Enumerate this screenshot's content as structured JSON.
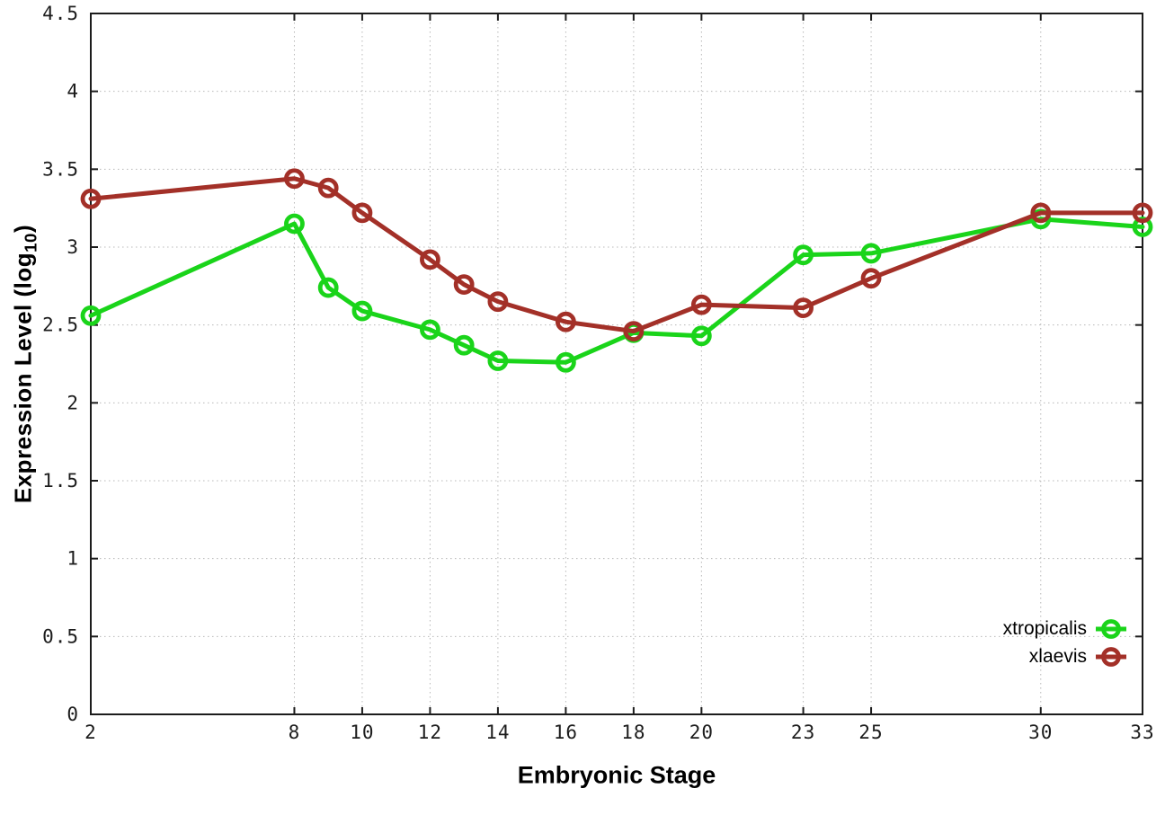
{
  "chart_data": {
    "type": "line",
    "title": "",
    "xlabel": "Embryonic Stage",
    "ylabel": {
      "prefix": "Expression Level (log",
      "subscript": "10",
      "suffix": ")"
    },
    "x": [
      2,
      8,
      9,
      10,
      12,
      13,
      14,
      16,
      18,
      20,
      23,
      25,
      30,
      33
    ],
    "series": [
      {
        "name": "xtropicalis",
        "color": "#1ad41a",
        "values": [
          2.56,
          3.15,
          2.74,
          2.59,
          2.47,
          2.37,
          2.27,
          2.26,
          2.45,
          2.43,
          2.95,
          2.96,
          3.18,
          3.13
        ]
      },
      {
        "name": "xlaevis",
        "color": "#a33028",
        "values": [
          3.31,
          3.44,
          3.38,
          3.22,
          2.92,
          2.76,
          2.65,
          2.52,
          2.46,
          2.63,
          2.61,
          2.8,
          3.22,
          3.22
        ]
      }
    ],
    "xlim": [
      2,
      33
    ],
    "ylim": [
      0,
      4.5
    ],
    "x_ticks": {
      "values": [
        2,
        8,
        10,
        12,
        14,
        16,
        18,
        20,
        23,
        25,
        30,
        33
      ],
      "labels": [
        "2",
        "8",
        "10",
        "12",
        "14",
        "16",
        "18",
        "20",
        "23",
        "25",
        "30",
        "33"
      ]
    },
    "y_ticks": {
      "values": [
        0,
        0.5,
        1,
        1.5,
        2,
        2.5,
        3,
        3.5,
        4,
        4.5
      ],
      "labels": [
        "0",
        "0.5",
        "1",
        "1.5",
        "2",
        "2.5",
        "3",
        "3.5",
        "4",
        "4.5"
      ]
    },
    "grid": true,
    "legend_position": "bottom-right"
  },
  "styles": {
    "grid_color": "#b8b8b8",
    "axis_color": "#1c1c1c",
    "background": "#ffffff"
  }
}
